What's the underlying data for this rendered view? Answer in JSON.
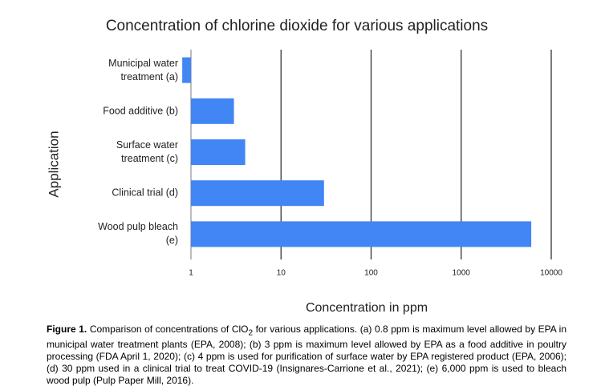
{
  "chart_data": {
    "type": "bar",
    "orientation": "horizontal",
    "title": "Concentration of chlorine dioxide for various applications",
    "x_label": "Concentration in ppm",
    "y_label": "Application",
    "categories": [
      "Municipal water treatment (a)",
      "Food additive (b)",
      "Surface water treatment (c)",
      "Clinical trial (d)",
      "Wood pulp bleach (e)"
    ],
    "values": [
      0.8,
      3,
      4,
      30,
      6000
    ],
    "color": "#4285f4",
    "log_scale": true,
    "xlim": [
      1,
      10000
    ],
    "xticks": [
      1,
      10,
      100,
      1000,
      10000
    ],
    "grid": true
  },
  "caption": {
    "label": "Figure 1.",
    "text_before": " Comparison of concentrations of ClO",
    "subscript": "2",
    "text_after": " for various applications. (a) 0.8 ppm is maximum level allowed by EPA in municipal water treatment plants (EPA, 2008); (b) 3 ppm is maximum level allowed by EPA as a food additive in poultry processing (FDA April 1, 2020); (c) 4 ppm is used for purification of surface water by EPA registered product (EPA, 2006); (d) 30 ppm used in a clinical trial to treat COVID-19 (Insignares-Carrione et al., 2021); (e) 6,000 ppm is used to bleach wood pulp (Pulp Paper Mill, 2016)."
  }
}
